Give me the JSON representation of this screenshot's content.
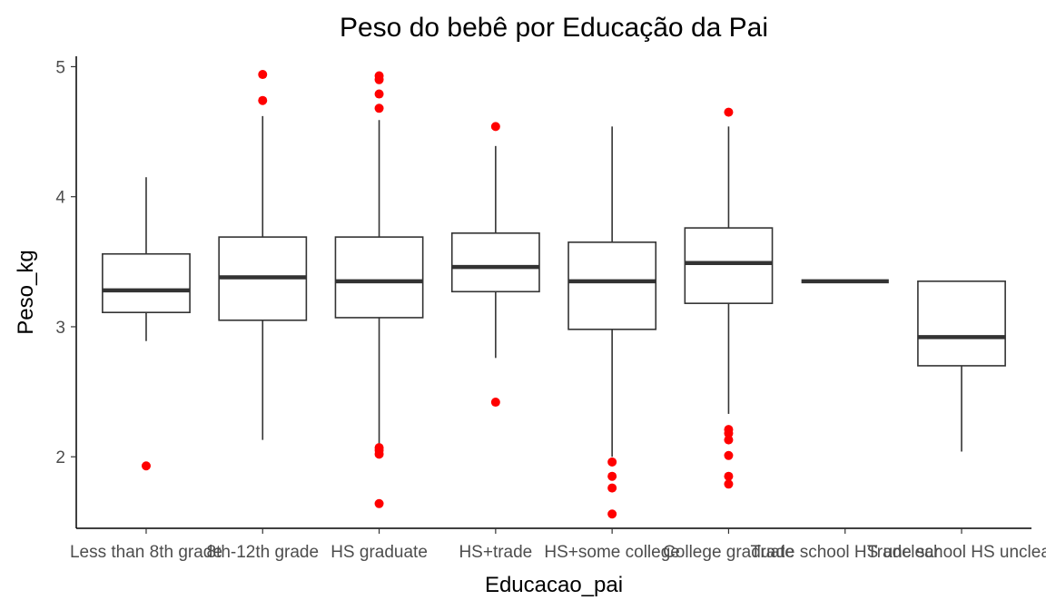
{
  "chart_data": {
    "type": "box",
    "title": "Peso do bebê por Educação da Pai",
    "xlabel": "Educacao_pai",
    "ylabel": "Peso_kg",
    "ylim": [
      1.45,
      5.08
    ],
    "yticks": [
      2,
      3,
      4,
      5
    ],
    "grid": false,
    "outlier_color": "#ff0000",
    "categories": [
      "Less than 8th grade",
      "8th-12th grade",
      "HS graduate",
      "HS+trade",
      "HS+some college",
      "College graduate",
      "Trade school HS unclear",
      "Trade school HS unclear"
    ],
    "boxes": [
      {
        "category": "Less than 8th grade",
        "lower_whisker": 2.89,
        "q1": 3.11,
        "median": 3.28,
        "q3": 3.56,
        "upper_whisker": 4.15,
        "outliers": [
          1.93
        ]
      },
      {
        "category": "8th-12th grade",
        "lower_whisker": 2.13,
        "q1": 3.05,
        "median": 3.38,
        "q3": 3.69,
        "upper_whisker": 4.62,
        "outliers": [
          4.74,
          4.94
        ]
      },
      {
        "category": "HS graduate",
        "lower_whisker": 2.09,
        "q1": 3.07,
        "median": 3.35,
        "q3": 3.69,
        "upper_whisker": 4.59,
        "outliers": [
          1.64,
          2.02,
          2.05,
          2.07,
          4.68,
          4.79,
          4.9,
          4.93
        ]
      },
      {
        "category": "HS+trade",
        "lower_whisker": 2.76,
        "q1": 3.27,
        "median": 3.46,
        "q3": 3.72,
        "upper_whisker": 4.39,
        "outliers": [
          2.42,
          4.54
        ]
      },
      {
        "category": "HS+some college",
        "lower_whisker": 2.0,
        "q1": 2.98,
        "median": 3.35,
        "q3": 3.65,
        "upper_whisker": 4.54,
        "outliers": [
          1.56,
          1.76,
          1.85,
          1.96
        ]
      },
      {
        "category": "College graduate",
        "lower_whisker": 2.33,
        "q1": 3.18,
        "median": 3.49,
        "q3": 3.76,
        "upper_whisker": 4.54,
        "outliers": [
          1.79,
          1.85,
          2.01,
          2.13,
          2.18,
          2.21,
          4.65
        ]
      },
      {
        "category": "Trade school HS unclear",
        "lower_whisker": 3.35,
        "q1": 3.35,
        "median": 3.35,
        "q3": 3.35,
        "upper_whisker": 3.35,
        "outliers": []
      },
      {
        "category": "Trade school HS unclear",
        "lower_whisker": 2.04,
        "q1": 2.7,
        "median": 2.92,
        "q3": 3.35,
        "upper_whisker": 3.35,
        "outliers": []
      }
    ]
  }
}
